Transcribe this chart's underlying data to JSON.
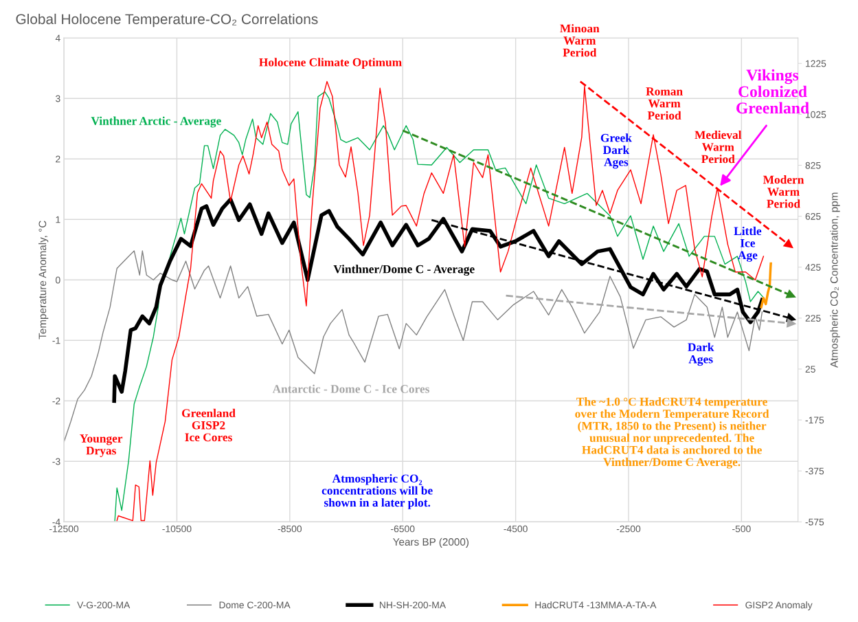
{
  "chart_data": {
    "type": "line",
    "title": "Global Holocene Temperature-CO₂ Correlations",
    "xlabel": "Years BP (2000)",
    "ylabel": "Temperature Anomaly, °C",
    "y2label": "Atmospheric CO₂ Concentration, ppm",
    "xlim": [
      -12500,
      500
    ],
    "xticks": [
      -12500,
      -10500,
      -8500,
      -6500,
      -4500,
      -2500,
      -500
    ],
    "ylim": [
      -4,
      4
    ],
    "yticks": [
      -4,
      -3,
      -2,
      -1,
      0,
      1,
      2,
      3,
      4
    ],
    "y2lim": [
      -575,
      1325
    ],
    "y2ticks": [
      -575,
      -375,
      -175,
      25,
      225,
      425,
      625,
      825,
      1025,
      1225
    ],
    "grid": true,
    "legend": "bottom",
    "line_style": "solid",
    "series": [
      {
        "name": "V-G-200-MA",
        "color": "#00b050",
        "x": [
          -11598,
          -11561,
          -11476,
          -11354,
          -11256,
          -11159,
          -11037,
          -10915,
          -10829,
          -10793,
          -10683,
          -10585,
          -10427,
          -10366,
          -10183,
          -10098,
          -10012,
          -9951,
          -9854,
          -9732,
          -9646,
          -9488,
          -9402,
          -9341,
          -9280,
          -9159,
          -9098,
          -8976,
          -8841,
          -8720,
          -8634,
          -8537,
          -8476,
          -8354,
          -8207,
          -8146,
          -8061,
          -8000,
          -7878,
          -7805,
          -7659,
          -7598,
          -7500,
          -7293,
          -7085,
          -6963,
          -6841,
          -6768,
          -6646,
          -6439,
          -6317,
          -6232,
          -5988,
          -5720,
          -5488,
          -5244,
          -4988,
          -4854,
          -4683,
          -4317,
          -4134,
          -3915,
          -3634,
          -3232,
          -3049,
          -2829,
          -2695,
          -2463,
          -2244,
          -2061,
          -1878,
          -1610,
          -1427,
          -1159,
          -976,
          -793,
          -573,
          -427,
          -341,
          -207,
          -122
        ],
        "values": [
          -3.98,
          -3.44,
          -3.81,
          -2.99,
          -2.05,
          -1.76,
          -1.43,
          -0.94,
          -0.45,
          -0.07,
          0.17,
          0.5,
          1.02,
          0.76,
          1.52,
          1.59,
          2.22,
          2.22,
          1.84,
          2.39,
          2.49,
          2.39,
          2.27,
          2.07,
          2.32,
          2.66,
          2.35,
          2.24,
          2.75,
          2.61,
          2.27,
          2.24,
          2.58,
          2.78,
          1.41,
          1.36,
          1.9,
          3.03,
          3.11,
          3.0,
          2.55,
          2.32,
          2.27,
          2.35,
          2.15,
          2.35,
          2.55,
          2.43,
          2.15,
          2.55,
          2.32,
          1.91,
          1.9,
          2.19,
          1.94,
          2.15,
          2.15,
          1.82,
          1.85,
          1.26,
          1.9,
          1.35,
          1.26,
          1.43,
          1.26,
          1.06,
          0.72,
          1.06,
          0.34,
          0.89,
          0.47,
          0.93,
          0.39,
          0.72,
          0.72,
          0.26,
          0.39,
          -0.03,
          -0.36,
          -0.19,
          -0.28
        ]
      },
      {
        "name": "Dome C-200-MA",
        "color": "#808080",
        "x": [
          -12500,
          -12378,
          -12256,
          -12134,
          -12012,
          -11890,
          -11805,
          -11683,
          -11598,
          -11561,
          -11354,
          -11256,
          -11159,
          -11110,
          -11037,
          -10915,
          -10793,
          -10585,
          -10500,
          -10341,
          -10183,
          -10012,
          -9939,
          -9732,
          -9549,
          -9402,
          -9244,
          -9085,
          -8878,
          -8634,
          -8512,
          -8354,
          -8061,
          -7902,
          -7780,
          -7573,
          -7451,
          -7378,
          -7171,
          -6927,
          -6768,
          -6561,
          -6439,
          -6256,
          -6073,
          -5756,
          -5585,
          -5427,
          -5268,
          -5085,
          -4817,
          -4537,
          -4183,
          -3915,
          -3683,
          -3500,
          -3280,
          -3012,
          -2829,
          -2646,
          -2415,
          -2195,
          -1927,
          -1695,
          -1476,
          -1329,
          -1110,
          -976,
          -841,
          -744,
          -573,
          -366,
          -256,
          -183,
          -134
        ],
        "values": [
          -2.68,
          -2.34,
          -1.97,
          -1.82,
          -1.59,
          -1.2,
          -0.86,
          -0.45,
          0.0,
          0.19,
          0.39,
          0.48,
          0.08,
          0.48,
          0.08,
          0.0,
          0.11,
          0.0,
          -0.03,
          0.31,
          -0.15,
          0.16,
          0.23,
          -0.3,
          0.23,
          -0.3,
          -0.11,
          -0.6,
          -0.57,
          -1.06,
          -0.83,
          -1.28,
          -1.55,
          -0.94,
          -0.72,
          -0.49,
          -0.91,
          -1.02,
          -1.36,
          -0.6,
          -0.57,
          -1.14,
          -0.72,
          -0.91,
          -0.61,
          -0.16,
          -0.61,
          -1.0,
          -0.36,
          -0.36,
          -0.66,
          -0.41,
          -0.19,
          -0.58,
          -0.16,
          -0.45,
          -0.88,
          -0.53,
          0.06,
          -0.28,
          -1.13,
          -0.66,
          -0.61,
          -0.78,
          -0.66,
          -0.24,
          -0.45,
          -0.95,
          -0.45,
          -0.95,
          -0.53,
          -1.17,
          -0.61,
          -0.83,
          -0.53
        ]
      },
      {
        "name": "NH-SH-200-MA",
        "color": "#000000",
        "x": [
          -11610,
          -11598,
          -11476,
          -11415,
          -11317,
          -11232,
          -11110,
          -10988,
          -10866,
          -10793,
          -10622,
          -10427,
          -10256,
          -10061,
          -9976,
          -9854,
          -9695,
          -9549,
          -9402,
          -9207,
          -9000,
          -8878,
          -8634,
          -8427,
          -8183,
          -7939,
          -7805,
          -7659,
          -7451,
          -7207,
          -6890,
          -6683,
          -6439,
          -6232,
          -6037,
          -5780,
          -5451,
          -5268,
          -4951,
          -4768,
          -4500,
          -4183,
          -3915,
          -3732,
          -3329,
          -3049,
          -2829,
          -2463,
          -2244,
          -2061,
          -1878,
          -1646,
          -1476,
          -1244,
          -1110,
          -976,
          -707,
          -573,
          -476,
          -341,
          -207,
          -134
        ],
        "values": [
          -2.0,
          -1.59,
          -1.85,
          -1.51,
          -0.83,
          -0.8,
          -0.6,
          -0.72,
          -0.45,
          -0.09,
          0.31,
          0.68,
          0.56,
          1.18,
          1.22,
          0.91,
          1.18,
          1.33,
          0.99,
          1.25,
          0.76,
          1.1,
          0.61,
          0.95,
          0.0,
          1.07,
          1.14,
          0.88,
          0.68,
          0.42,
          0.95,
          0.57,
          0.91,
          0.57,
          0.68,
          1.01,
          0.47,
          0.84,
          0.81,
          0.55,
          0.64,
          0.81,
          0.39,
          0.64,
          0.26,
          0.47,
          0.51,
          -0.12,
          -0.24,
          0.1,
          -0.16,
          0.1,
          -0.11,
          0.18,
          0.14,
          -0.24,
          -0.24,
          -0.16,
          -0.53,
          -0.7,
          -0.53,
          -0.33
        ]
      },
      {
        "name": "HadCRUT4 -13MMA-A-TA-A",
        "color": "#ff9900",
        "x": [
          -150,
          -110,
          -70,
          -30,
          0,
          15,
          20
        ],
        "values": [
          -0.45,
          -0.3,
          -0.4,
          -0.2,
          -0.1,
          0.2,
          0.27
        ]
      },
      {
        "name": "GISP2 Anomaly",
        "color": "#ff0000",
        "x": [
          -11561,
          -11537,
          -11280,
          -11232,
          -11171,
          -11134,
          -11073,
          -11012,
          -10976,
          -10927,
          -10866,
          -10707,
          -10585,
          -10463,
          -10341,
          -10256,
          -10134,
          -10061,
          -9890,
          -9854,
          -9732,
          -9671,
          -9549,
          -9402,
          -9329,
          -9220,
          -9146,
          -9061,
          -9000,
          -8902,
          -8817,
          -8695,
          -8634,
          -8512,
          -8427,
          -8305,
          -8207,
          -8110,
          -7963,
          -7841,
          -7744,
          -7622,
          -7512,
          -7415,
          -7293,
          -7195,
          -7085,
          -6902,
          -6805,
          -6683,
          -6524,
          -6439,
          -6256,
          -6122,
          -5988,
          -5780,
          -5598,
          -5402,
          -5244,
          -5085,
          -4988,
          -4768,
          -4634,
          -4500,
          -4232,
          -3915,
          -3634,
          -3500,
          -3329,
          -3280,
          -3073,
          -2963,
          -2829,
          -2695,
          -2463,
          -2280,
          -2061,
          -1927,
          -1793,
          -1646,
          -1488,
          -1329,
          -1195,
          -1024,
          -927,
          -744,
          -610,
          -427,
          -256,
          -110
        ],
        "values": [
          -3.98,
          -3.9,
          -3.98,
          -3.39,
          -3.42,
          -3.98,
          -3.98,
          -3.36,
          -2.99,
          -3.56,
          -3.02,
          -2.34,
          -1.32,
          -0.94,
          -0.26,
          0.19,
          1.44,
          1.59,
          1.35,
          1.64,
          2.13,
          2.05,
          1.3,
          1.9,
          2.05,
          1.75,
          2.09,
          2.55,
          2.35,
          2.61,
          2.24,
          2.13,
          1.82,
          1.56,
          1.67,
          0.31,
          -0.43,
          1.14,
          2.84,
          3.28,
          3.03,
          1.9,
          1.7,
          2.2,
          1.44,
          0.57,
          1.07,
          3.17,
          2.58,
          1.07,
          1.22,
          1.23,
          0.89,
          1.43,
          1.77,
          1.43,
          2.07,
          0.55,
          1.94,
          1.69,
          2.07,
          0.13,
          0.47,
          0.95,
          1.85,
          0.89,
          2.19,
          1.43,
          2.36,
          3.2,
          1.23,
          1.48,
          1.1,
          1.48,
          1.82,
          1.26,
          2.4,
          1.73,
          0.93,
          1.48,
          1.56,
          0.51,
          0.05,
          1.06,
          1.52,
          0.59,
          0.13,
          0.13,
          0.0,
          0.39
        ]
      },
      {
        "color": "#2e8b20",
        "line_style": "dashed",
        "x": [
          -6500,
          390
        ],
        "values": [
          2.47,
          -0.26
        ]
      },
      {
        "color": "#000000",
        "line_style": "dashed",
        "x": [
          -5988,
          390
        ],
        "values": [
          0.99,
          -0.64
        ]
      },
      {
        "color": "#a6a6a6",
        "line_style": "dashed",
        "x": [
          -4671,
          390
        ],
        "values": [
          -0.26,
          -0.72
        ]
      },
      {
        "color": "#ff0000",
        "line_style": "dashed",
        "x": [
          -3354,
          353
        ],
        "values": [
          3.28,
          0.57
        ]
      }
    ],
    "annotations": [
      "Holocene Climate Optimum",
      "Vinthner Arctic - Average",
      "Minoan\nWarm\nPeriod",
      "Roman\nWarm\nPeriod",
      "Greek\nDark\nAges",
      "Medieval\nWarm\nPeriod",
      "Vikings\nColonized\nGreenland",
      "Modern\nWarm\nPeriod",
      "Little\nIce\nAge",
      "Vinthner/Dome C - Average",
      "Antarctic - Dome C - Ice Cores",
      "Dark\nAges",
      "Greenland\nGISP2\nIce Cores",
      "Younger\nDryas",
      "Atmospheric CO₂\nconcentrations will be\nshown in a later plot.",
      "The ~1.0 °C HadCRUT4 temperature\nover the Modern Temperature Record\n(MTR, 1850 to the Present) is neither\nunusual nor unprecedented. The\nHadCRUT4 data is anchored to the\nVinthner/Dome C Average."
    ]
  }
}
